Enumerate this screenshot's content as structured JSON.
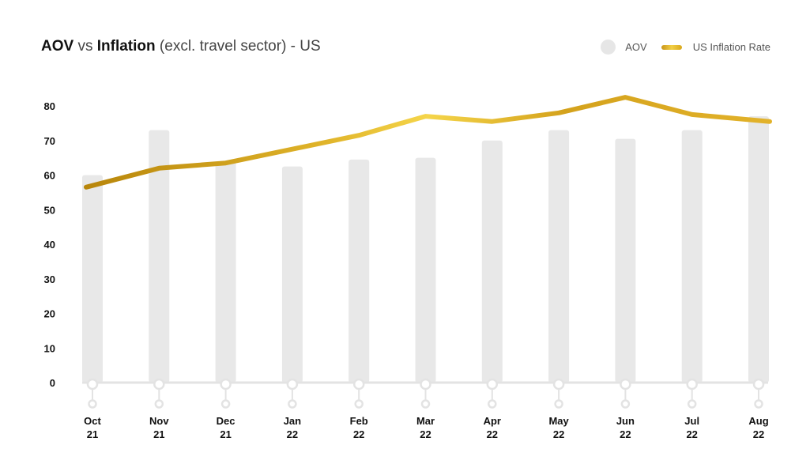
{
  "title": {
    "bold1": "AOV",
    "mid": " vs ",
    "bold2": "Inflation",
    "rest": " (excl. travel sector) - US"
  },
  "colors": {
    "bar": "#e8e8e8",
    "line": "#d9a81c",
    "line_light": "#f2cf45",
    "line_dark": "#b8860b",
    "axis": "#e3e3e3"
  },
  "chart_data": {
    "type": "bar",
    "title": "AOV vs Inflation (excl. travel sector) - US",
    "categories": [
      [
        "Oct",
        "21"
      ],
      [
        "Nov",
        "21"
      ],
      [
        "Dec",
        "21"
      ],
      [
        "Jan",
        "22"
      ],
      [
        "Feb",
        "22"
      ],
      [
        "Mar",
        "22"
      ],
      [
        "Apr",
        "22"
      ],
      [
        "May",
        "22"
      ],
      [
        "Jun",
        "22"
      ],
      [
        "Jul",
        "22"
      ],
      [
        "Aug",
        "22"
      ]
    ],
    "yticks": [
      0,
      10,
      20,
      30,
      40,
      50,
      60,
      70,
      80
    ],
    "ylim": [
      0,
      80
    ],
    "grid": false,
    "legend_position": "top-right",
    "series": [
      {
        "name": "AOV",
        "type": "bar",
        "values": [
          60,
          73,
          64,
          62.5,
          64.5,
          65,
          70,
          73,
          70.5,
          73,
          77
        ]
      },
      {
        "name": "US Inflation Rate",
        "type": "line",
        "values": [
          56.5,
          62,
          63.5,
          67.5,
          71.5,
          77,
          75.5,
          78,
          82.5,
          77.5,
          75.5
        ]
      }
    ]
  }
}
